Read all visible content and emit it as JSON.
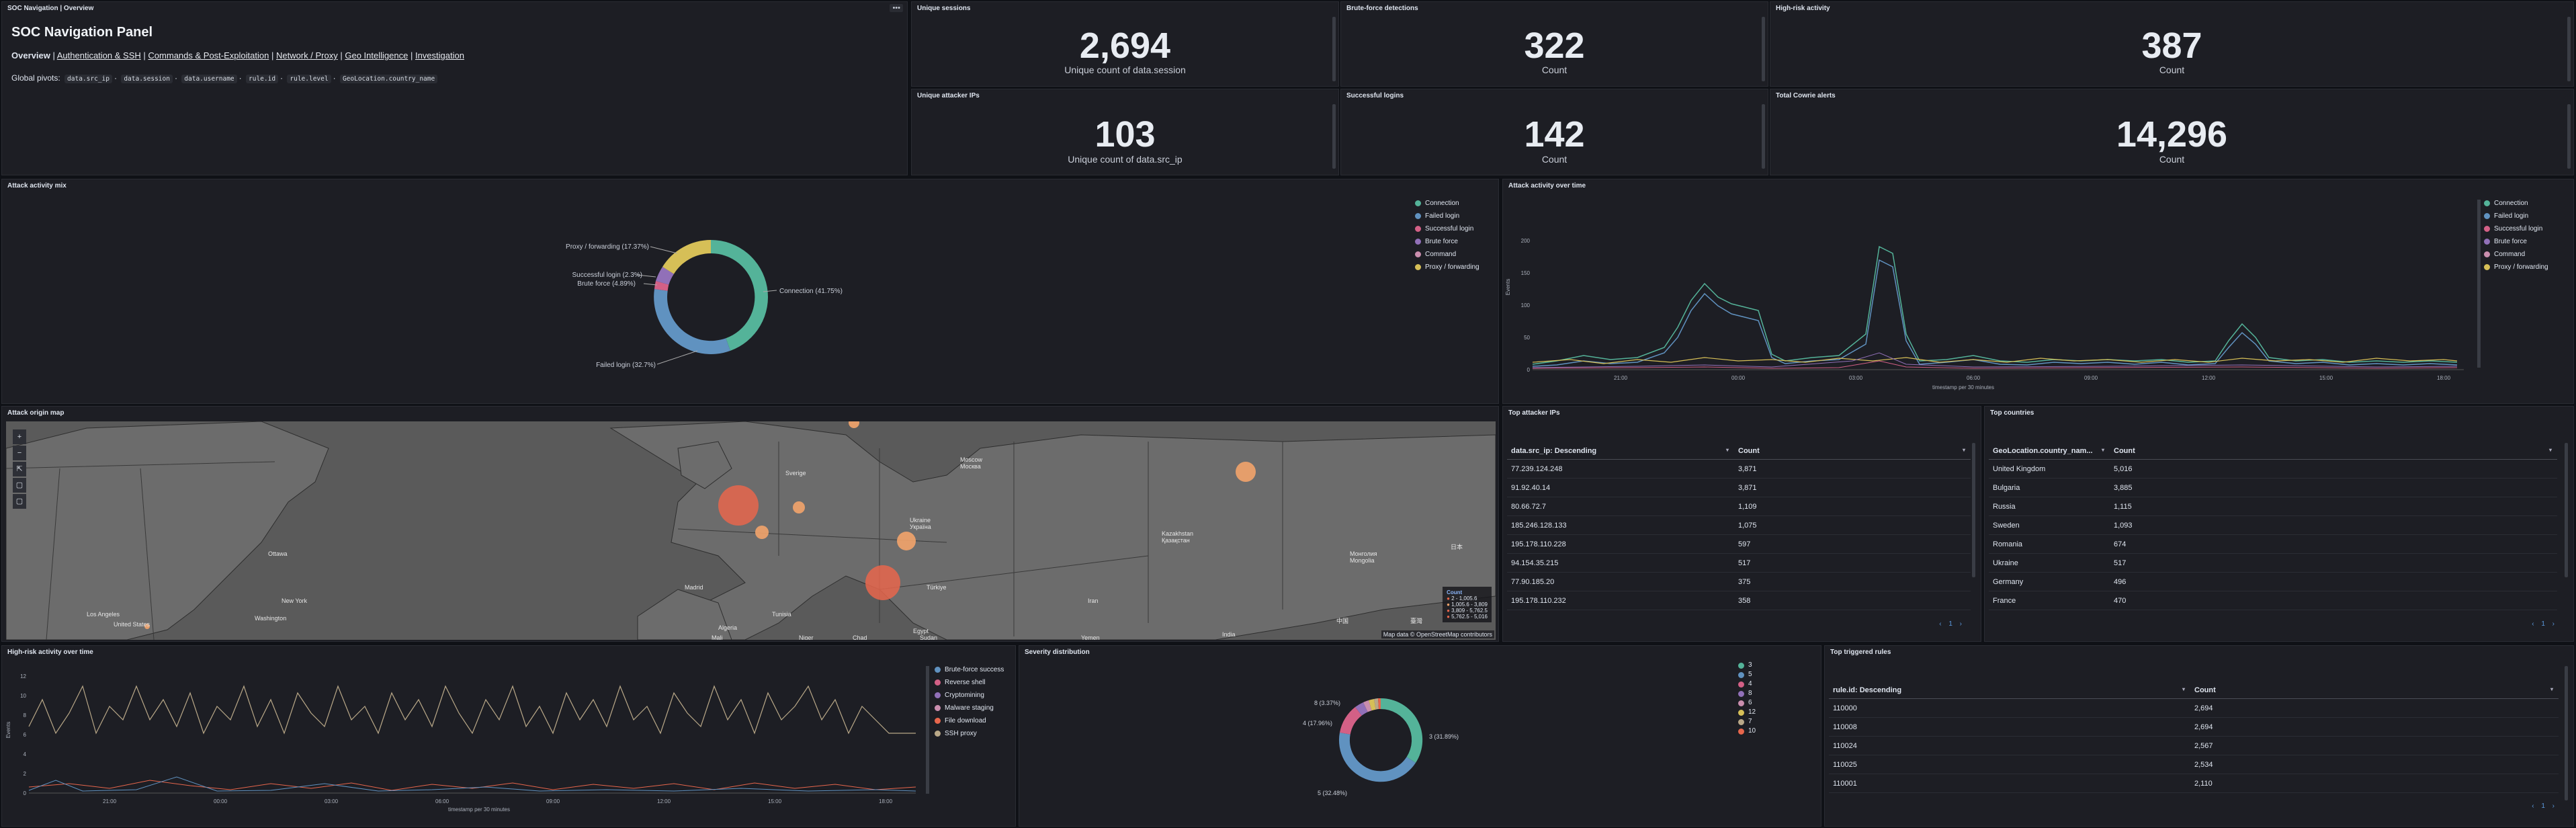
{
  "nav": {
    "panel_title": "SOC Navigation | Overview",
    "menu": "•••",
    "title": "SOC Navigation Panel",
    "current": "Overview",
    "links": [
      "Authentication & SSH",
      "Commands & Post-Exploitation",
      "Network / Proxy",
      "Geo Intelligence",
      "Investigation"
    ],
    "separator": "|",
    "pivots_label": "Global pivots:",
    "pivots": [
      "data.src_ip",
      "data.session",
      "data.username",
      "rule.id",
      "rule.level",
      "GeoLocation.country_name"
    ]
  },
  "metrics": [
    {
      "title": "Unique sessions",
      "value": "2,694",
      "label": "Unique count of data.session"
    },
    {
      "title": "Brute-force detections",
      "value": "322",
      "label": "Count"
    },
    {
      "title": "High-risk activity",
      "value": "387",
      "label": "Count"
    },
    {
      "title": "Unique attacker IPs",
      "value": "103",
      "label": "Unique count of data.src_ip"
    },
    {
      "title": "Successful logins",
      "value": "142",
      "label": "Count"
    },
    {
      "title": "Total Cowrie alerts",
      "value": "14,296",
      "label": "Count"
    }
  ],
  "colors": {
    "teal": "#54b399",
    "blue": "#6092c0",
    "pink": "#d36086",
    "purple": "#9170b8",
    "rose": "#ca8eae",
    "yellow": "#d6bf57",
    "orange": "#e7664c",
    "green": "#b9a888",
    "red": "#e7664c"
  },
  "activity_mix": {
    "title": "Attack activity mix",
    "legend": [
      "Connection",
      "Failed login",
      "Successful login",
      "Brute force",
      "Command",
      "Proxy / forwarding"
    ],
    "labels": [
      "Connection (41.75%)",
      "Failed login (32.7%)",
      "Successful login (2.3%)",
      "Brute force (4.89%)",
      "Proxy / forwarding (17.37%)"
    ]
  },
  "activity_time": {
    "title": "Attack activity over time",
    "ylabel": "Events",
    "xlabel": "timestamp per 30 minutes",
    "yticks": [
      "0",
      "50",
      "100",
      "150",
      "200"
    ],
    "xticks": [
      "21:00",
      "00:00",
      "03:00",
      "06:00",
      "09:00",
      "12:00",
      "15:00",
      "18:00"
    ],
    "legend": [
      "Connection",
      "Failed login",
      "Successful login",
      "Brute force",
      "Command",
      "Proxy / forwarding"
    ]
  },
  "map": {
    "title": "Attack origin map",
    "tools": [
      "+",
      "−",
      "⇱",
      "▢",
      "▢"
    ],
    "legend_title": "Count",
    "legend_items": [
      "2 - 1,005.6",
      "1,005.6 - 3,809",
      "3,809 - 5,762.5",
      "5,762.5 - 5,016"
    ],
    "attribution": "Map data © OpenStreetMap contributors",
    "places": [
      "Ottawa",
      "New York",
      "Washington",
      "Los Angeles",
      "United States",
      "Moscow",
      "Москва",
      "Kazakhstan",
      "Қазақстан",
      "Монголия",
      "Mongolia",
      "中国",
      "Iran",
      "India",
      "Egypt",
      "Tunisia",
      "Algeria",
      "Mali",
      "Niger",
      "Chad",
      "Sudan",
      "Yemen",
      "Sverige",
      "Ukraine",
      "Türkiye",
      "Україна",
      "日本",
      "臺灣",
      "Madrid"
    ]
  },
  "top_ips": {
    "title": "Top attacker IPs",
    "col1": "data.src_ip: Descending",
    "col2": "Count",
    "rows": [
      [
        "77.239.124.248",
        "3,871"
      ],
      [
        "91.92.40.14",
        "3,871"
      ],
      [
        "80.66.72.7",
        "1,109"
      ],
      [
        "185.246.128.133",
        "1,075"
      ],
      [
        "195.178.110.228",
        "597"
      ],
      [
        "94.154.35.215",
        "517"
      ],
      [
        "77.90.185.20",
        "375"
      ],
      [
        "195.178.110.232",
        "358"
      ]
    ],
    "page": "1"
  },
  "top_countries": {
    "title": "Top countries",
    "col1": "GeoLocation.country_nam...",
    "col2": "Count",
    "rows": [
      [
        "United Kingdom",
        "5,016"
      ],
      [
        "Bulgaria",
        "3,885"
      ],
      [
        "Russia",
        "1,115"
      ],
      [
        "Sweden",
        "1,093"
      ],
      [
        "Romania",
        "674"
      ],
      [
        "Ukraine",
        "517"
      ],
      [
        "Germany",
        "496"
      ],
      [
        "France",
        "470"
      ]
    ],
    "page": "1"
  },
  "highrisk": {
    "title": "High-risk activity over time",
    "ylabel": "Events",
    "xlabel": "timestamp per 30 minutes",
    "yticks": [
      "0",
      "2",
      "4",
      "6",
      "8",
      "10",
      "12"
    ],
    "xticks": [
      "21:00",
      "00:00",
      "03:00",
      "06:00",
      "09:00",
      "12:00",
      "15:00",
      "18:00"
    ],
    "legend": [
      "Brute-force success",
      "Reverse shell",
      "Cryptomining",
      "Malware staging",
      "File download",
      "SSH proxy"
    ]
  },
  "severity": {
    "title": "Severity distribution",
    "legend": [
      "3",
      "5",
      "4",
      "8",
      "6",
      "12",
      "7",
      "10"
    ],
    "labels": [
      "3 (31.89%)",
      "5 (32.48%)",
      "4 (17.96%)",
      "8 (3.37%)"
    ]
  },
  "rules": {
    "title": "Top triggered rules",
    "col1": "rule.id: Descending",
    "col2": "Count",
    "rows": [
      [
        "110000",
        "2,694"
      ],
      [
        "110008",
        "2,694"
      ],
      [
        "110024",
        "2,567"
      ],
      [
        "110025",
        "2,534"
      ],
      [
        "110001",
        "2,110"
      ]
    ],
    "page": "1"
  }
}
